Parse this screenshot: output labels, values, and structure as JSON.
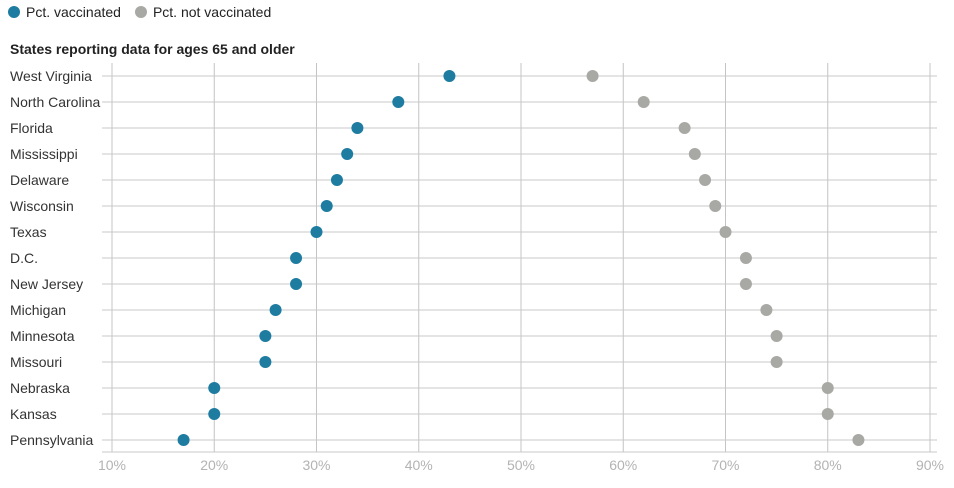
{
  "legend": {
    "items": [
      {
        "label": "Pct. vaccinated",
        "color": "#1e7ca1"
      },
      {
        "label": "Pct. not vaccinated",
        "color": "#a8a8a4"
      }
    ]
  },
  "chart_data": {
    "type": "scatter",
    "subtitle": "States reporting data for ages 65 and older",
    "categories": [
      "West Virginia",
      "North Carolina",
      "Florida",
      "Mississippi",
      "Delaware",
      "Wisconsin",
      "Texas",
      "D.C.",
      "New Jersey",
      "Michigan",
      "Minnesota",
      "Missouri",
      "Nebraska",
      "Kansas",
      "Pennsylvania"
    ],
    "series": [
      {
        "name": "Pct. vaccinated",
        "color": "#1e7ca1",
        "values": [
          43,
          38,
          34,
          33,
          32,
          31,
          30,
          28,
          28,
          26,
          25,
          25,
          20,
          20,
          17
        ]
      },
      {
        "name": "Pct. not vaccinated",
        "color": "#a8a8a4",
        "values": [
          57,
          62,
          66,
          67,
          68,
          69,
          70,
          72,
          72,
          74,
          75,
          75,
          80,
          80,
          83
        ]
      }
    ],
    "xlim": [
      10,
      90
    ],
    "xticks": [
      10,
      20,
      30,
      40,
      50,
      60,
      70,
      80,
      90
    ],
    "xtick_labels": [
      "10%",
      "20%",
      "30%",
      "40%",
      "50%",
      "60%",
      "70%",
      "80%",
      "90%"
    ],
    "grid": true,
    "legend_position": "top-left"
  }
}
